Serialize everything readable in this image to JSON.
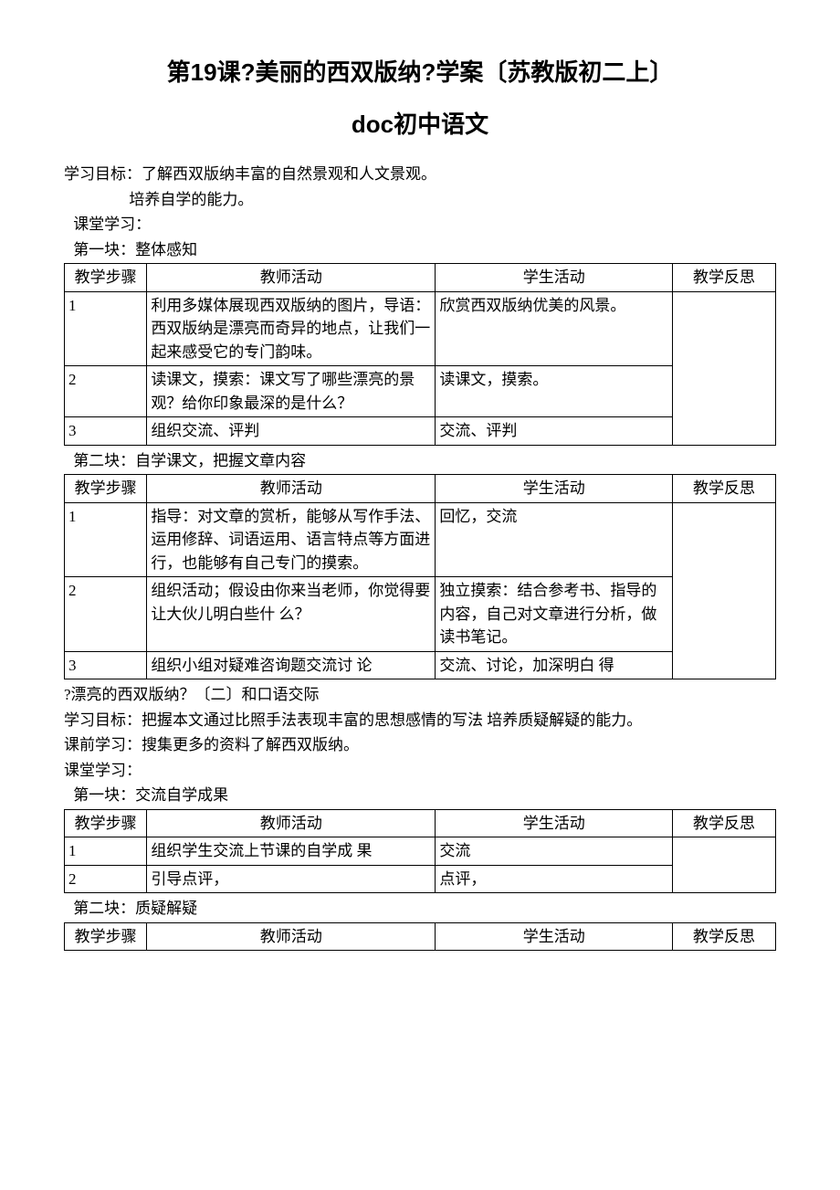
{
  "title": "第19课?美丽的西双版纳?学案〔苏教版初二上〕",
  "subtitle": "doc初中语文",
  "intro": {
    "goal_label": "学习目标：",
    "goal_text": "了解西双版纳丰富的自然景观和人文景观。",
    "goal_sub": "培养自学的能力。",
    "class_label": "课堂学习："
  },
  "headers": {
    "step": "教学步骤",
    "teacher": "教师活动",
    "student": "学生活动",
    "reflect": "教学反思"
  },
  "block1": {
    "caption": "第一块：整体感知",
    "rows": [
      {
        "n": "1",
        "t": "利用多媒体展现西双版纳的图片，导语：西双版纳是漂亮而奇异的地点，让我们一起来感受它的专门韵味。",
        "s": "欣赏西双版纳优美的风景。"
      },
      {
        "n": "2",
        "t": "读课文，摸索：课文写了哪些漂亮的景观？给你印象最深的是什么？",
        "s": "读课文，摸索。"
      },
      {
        "n": "3",
        "t": "组织交流、评判",
        "s": "交流、评判"
      }
    ]
  },
  "block2": {
    "caption": "第二块：自学课文，把握文章内容",
    "rows": [
      {
        "n": "1",
        "t": "指导：对文章的赏析，能够从写作手法、运用修辞、词语运用、语言特点等方面进行，也能够有自己专门的摸索。",
        "s": "回忆，交流"
      },
      {
        "n": "2",
        "t": "组织活动；假设由你来当老师，你觉得要让大伙儿明白些什 么？",
        "s": "独立摸索：结合参考书、指导的内容，自己对文章进行分析，做读书笔记。"
      },
      {
        "n": "3",
        "t": "组织小组对疑难咨询题交流讨 论",
        "s": "交流、讨论，加深明白 得"
      }
    ]
  },
  "mid": {
    "line1": "?漂亮的西双版纳？〔二〕和口语交际",
    "line2": "学习目标：把握本文通过比照手法表现丰富的思想感情的写法 培养质疑解疑的能力。",
    "line3": "课前学习：搜集更多的资料了解西双版纳。",
    "line4": "课堂学习："
  },
  "block3": {
    "caption": "第一块：交流自学成果",
    "rows": [
      {
        "n": "1",
        "t": "组织学生交流上节课的自学成 果",
        "s": "交流"
      },
      {
        "n": "2",
        "t": "引导点评，",
        "s": "点评，"
      }
    ]
  },
  "block4": {
    "caption": "第二块：质疑解疑"
  }
}
